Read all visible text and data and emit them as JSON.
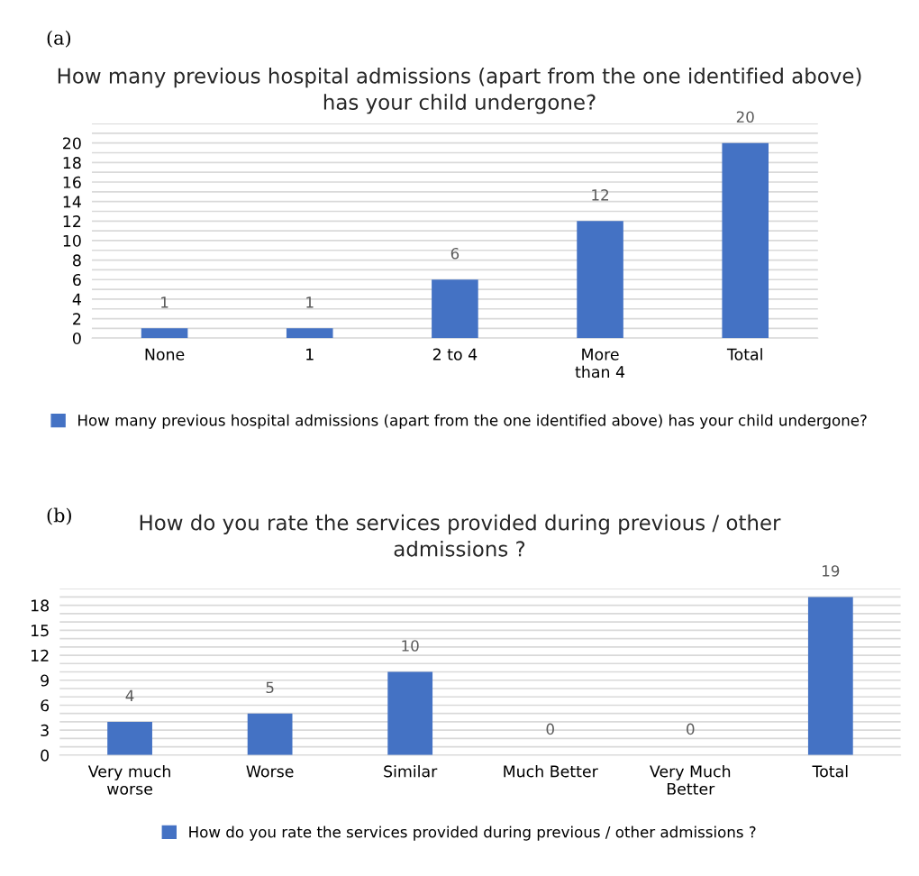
{
  "chart_data": [
    {
      "type": "bar",
      "title": "How many previous hospital admissions (apart from the one identified above)\nhas your child undergone?",
      "annotations": [
        "(a)"
      ],
      "categories": [
        "None",
        "1",
        "2 to 4",
        "More\nthan 4",
        "Total"
      ],
      "series": [
        {
          "name": "How many previous hospital admissions (apart from the one identified above) has your child undergone?",
          "color": "#4472c4",
          "values": [
            1,
            1,
            6,
            12,
            20
          ]
        }
      ],
      "ylim": [
        0,
        22
      ],
      "yticks": [
        0,
        {
          "value": 1,
          "label": null
        },
        2,
        {
          "value": 3,
          "label": null
        },
        4,
        {
          "value": 5,
          "label": null
        },
        6,
        {
          "value": 7,
          "label": null
        },
        8,
        {
          "value": 9,
          "label": null
        },
        10,
        {
          "value": 11,
          "label": null
        },
        12,
        {
          "value": 13,
          "label": null
        },
        14,
        {
          "value": 15,
          "label": null
        },
        16,
        {
          "value": 17,
          "label": null
        },
        18,
        {
          "value": 19,
          "label": null
        },
        20,
        {
          "value": 21,
          "label": null
        },
        {
          "value": 22,
          "label": null
        }
      ],
      "grid": "y",
      "legend": "bottom",
      "data_labels": true
    },
    {
      "type": "bar",
      "title": "How do you rate the services provided during previous / other\nadmissions ?",
      "annotations": [
        "(b)"
      ],
      "categories": [
        "Very much\nworse",
        "Worse",
        "Similar",
        "Much Better",
        "Very Much\nBetter",
        "Total"
      ],
      "series": [
        {
          "name": "How do you rate the services provided during previous / other admissions ?",
          "color": "#4472c4",
          "values": [
            4,
            5,
            10,
            0,
            0,
            19
          ]
        }
      ],
      "ylim": [
        0,
        20
      ],
      "yticks": [
        0,
        {
          "value": 1,
          "label": null
        },
        {
          "value": 2,
          "label": null
        },
        3,
        {
          "value": 4,
          "label": null
        },
        {
          "value": 5,
          "label": null
        },
        6,
        {
          "value": 7,
          "label": null
        },
        {
          "value": 8,
          "label": null
        },
        9,
        {
          "value": 10,
          "label": null
        },
        {
          "value": 11,
          "label": null
        },
        12,
        {
          "value": 13,
          "label": null
        },
        {
          "value": 14,
          "label": null
        },
        15,
        {
          "value": 16,
          "label": null
        },
        {
          "value": 17,
          "label": null
        },
        18,
        {
          "value": 19,
          "label": null
        },
        {
          "value": 20,
          "label": null
        }
      ],
      "grid": "y",
      "legend": "bottom",
      "data_labels": true
    }
  ]
}
